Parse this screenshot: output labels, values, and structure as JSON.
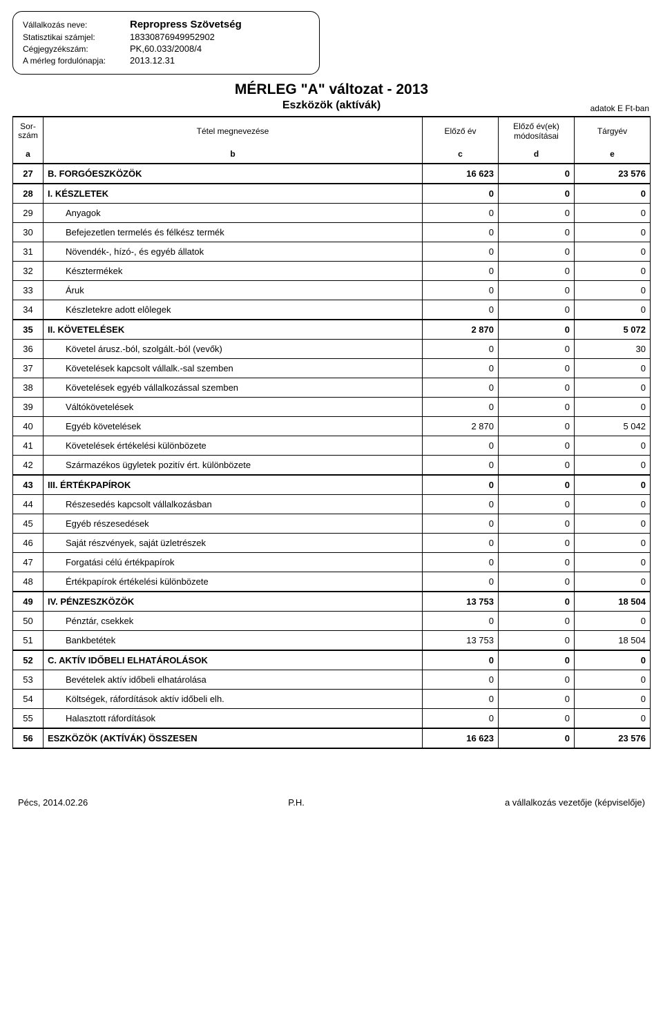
{
  "header": {
    "company_label": "Vállalkozás neve:",
    "company_value": "Repropress  Szövetség",
    "stat_label": "Statisztikai számjel:",
    "stat_value": "18330876949952902",
    "reg_label": "Cégjegyzékszám:",
    "reg_value": "PK,60.033/2008/4",
    "date_label": "A mérleg fordulónapja:",
    "date_value": "2013.12.31"
  },
  "title": {
    "main": "MÉRLEG \"A\" változat - 2013",
    "sub": "Eszközök (aktívák)",
    "units": "adatok E Ft-ban"
  },
  "columns": {
    "sor_l1": "Sor-",
    "sor_l2": "szám",
    "name": "Tétel megnevezése",
    "c": "Előző év",
    "d_l1": "Előző év(ek)",
    "d_l2": "módosításai",
    "e": "Tárgyév",
    "la": "a",
    "lb": "b",
    "lc": "c",
    "ld": "d",
    "le": "e"
  },
  "rows": [
    {
      "n": "27",
      "name": "B. FORGÓESZKÖZÖK",
      "c": "16 623",
      "d": "0",
      "e": "23 576",
      "bold": true,
      "hr": true
    },
    {
      "n": "28",
      "name": "I. KÉSZLETEK",
      "c": "0",
      "d": "0",
      "e": "0",
      "bold": true,
      "hr": true
    },
    {
      "n": "29",
      "name": "Anyagok",
      "c": "0",
      "d": "0",
      "e": "0",
      "indent": true
    },
    {
      "n": "30",
      "name": "Befejezetlen termelés és félkész termék",
      "c": "0",
      "d": "0",
      "e": "0",
      "indent": true
    },
    {
      "n": "31",
      "name": "Növendék-, hízó-, és egyéb állatok",
      "c": "0",
      "d": "0",
      "e": "0",
      "indent": true
    },
    {
      "n": "32",
      "name": "Késztermékek",
      "c": "0",
      "d": "0",
      "e": "0",
      "indent": true
    },
    {
      "n": "33",
      "name": "Áruk",
      "c": "0",
      "d": "0",
      "e": "0",
      "indent": true
    },
    {
      "n": "34",
      "name": "Készletekre adott elôlegek",
      "c": "0",
      "d": "0",
      "e": "0",
      "indent": true
    },
    {
      "n": "35",
      "name": "II. KÖVETELÉSEK",
      "c": "2 870",
      "d": "0",
      "e": "5 072",
      "bold": true,
      "hr": true
    },
    {
      "n": "36",
      "name": "Követel árusz.-ból, szolgált.-ból (vevők)",
      "c": "0",
      "d": "0",
      "e": "30",
      "indent": true
    },
    {
      "n": "37",
      "name": "Követelések kapcsolt vállalk.-sal szemben",
      "c": "0",
      "d": "0",
      "e": "0",
      "indent": true
    },
    {
      "n": "38",
      "name": "Követelések egyéb vállalkozással szemben",
      "c": "0",
      "d": "0",
      "e": "0",
      "indent": true
    },
    {
      "n": "39",
      "name": "Váltókövetelések",
      "c": "0",
      "d": "0",
      "e": "0",
      "indent": true
    },
    {
      "n": "40",
      "name": "Egyéb követelések",
      "c": "2 870",
      "d": "0",
      "e": "5 042",
      "indent": true
    },
    {
      "n": "41",
      "name": "Követelések értékelési különbözete",
      "c": "0",
      "d": "0",
      "e": "0",
      "indent": true
    },
    {
      "n": "42",
      "name": "Származékos ügyletek pozitív ért. különbözete",
      "c": "0",
      "d": "0",
      "e": "0",
      "indent": true
    },
    {
      "n": "43",
      "name": "III. ÉRTÉKPAPÍROK",
      "c": "0",
      "d": "0",
      "e": "0",
      "bold": true,
      "hr": true
    },
    {
      "n": "44",
      "name": "Részesedés kapcsolt vállalkozásban",
      "c": "0",
      "d": "0",
      "e": "0",
      "indent": true
    },
    {
      "n": "45",
      "name": "Egyéb részesedések",
      "c": "0",
      "d": "0",
      "e": "0",
      "indent": true
    },
    {
      "n": "46",
      "name": "Saját részvények, saját üzletrészek",
      "c": "0",
      "d": "0",
      "e": "0",
      "indent": true
    },
    {
      "n": "47",
      "name": "Forgatási célú értékpapírok",
      "c": "0",
      "d": "0",
      "e": "0",
      "indent": true
    },
    {
      "n": "48",
      "name": "Értékpapírok értékelési különbözete",
      "c": "0",
      "d": "0",
      "e": "0",
      "indent": true
    },
    {
      "n": "49",
      "name": "IV. PÉNZESZKÖZÖK",
      "c": "13 753",
      "d": "0",
      "e": "18 504",
      "bold": true,
      "hr": true
    },
    {
      "n": "50",
      "name": "Pénztár, csekkek",
      "c": "0",
      "d": "0",
      "e": "0",
      "indent": true
    },
    {
      "n": "51",
      "name": "Bankbetétek",
      "c": "13 753",
      "d": "0",
      "e": "18 504",
      "indent": true
    },
    {
      "n": "52",
      "name": "C. AKTÍV IDŐBELI ELHATÁROLÁSOK",
      "c": "0",
      "d": "0",
      "e": "0",
      "bold": true,
      "hr": true
    },
    {
      "n": "53",
      "name": "Bevételek aktív időbeli elhatárolása",
      "c": "0",
      "d": "0",
      "e": "0",
      "indent": true
    },
    {
      "n": "54",
      "name": "Költségek, ráfordítások aktív időbeli elh.",
      "c": "0",
      "d": "0",
      "e": "0",
      "indent": true
    },
    {
      "n": "55",
      "name": "Halasztott ráfordítások",
      "c": "0",
      "d": "0",
      "e": "0",
      "indent": true
    },
    {
      "n": "56",
      "name": "ESZKÖZÖK (AKTÍVÁK) ÖSSZESEN",
      "c": "16 623",
      "d": "0",
      "e": "23 576",
      "bold": true,
      "hr": true
    }
  ],
  "footer": {
    "left": "Pécs, 2014.02.26",
    "center": "P.H.",
    "right": "a vállalkozás vezetője (képviselője)"
  }
}
